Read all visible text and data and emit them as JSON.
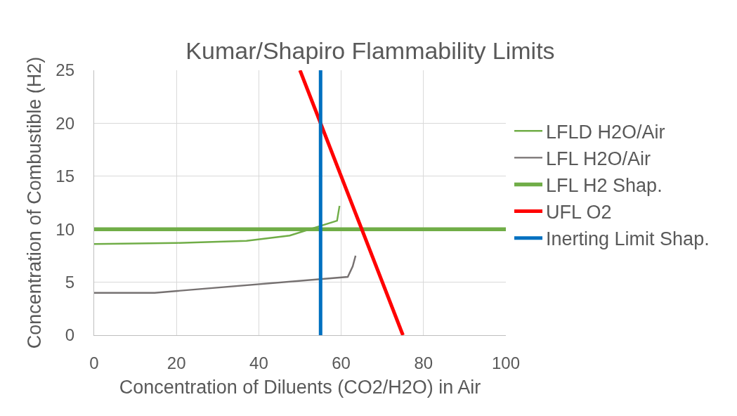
{
  "chart_data": {
    "type": "line",
    "title": "Kumar/Shapiro Flammability Limits",
    "xlabel": "Concentration of Diluents (CO2/H2O) in Air",
    "ylabel": "Concentration of Combustible (H2)",
    "xlim": [
      0,
      100
    ],
    "xticks": [
      0,
      20,
      40,
      60,
      80,
      100
    ],
    "ylim": [
      0,
      25
    ],
    "yticks": [
      0,
      5,
      10,
      15,
      20,
      25
    ],
    "grid": true,
    "legend": "right",
    "series": [
      {
        "name": "LFLD H2O/Air",
        "color": "#70ad47",
        "x": [
          0,
          20,
          37,
          47.5,
          59,
          59.6
        ],
        "values": [
          8.6,
          8.7,
          8.9,
          9.4,
          10.8,
          12.2
        ]
      },
      {
        "name": "LFL H2O/Air",
        "color": "#767171",
        "x": [
          0,
          14.7,
          61.6,
          62.8,
          63.5
        ],
        "values": [
          4.0,
          4.0,
          5.5,
          6.5,
          7.5
        ]
      },
      {
        "name": "LFL H2 Shap.",
        "color": "#70ad47",
        "x": [
          0,
          100
        ],
        "values": [
          10,
          10
        ]
      },
      {
        "name": "UFL O2",
        "color": "#ff0000",
        "x": [
          50,
          75
        ],
        "values": [
          25,
          0
        ]
      },
      {
        "name": "Inerting Limit Shap.",
        "color": "#0070c0",
        "x": [
          55,
          55
        ],
        "values": [
          0,
          25
        ]
      }
    ]
  }
}
